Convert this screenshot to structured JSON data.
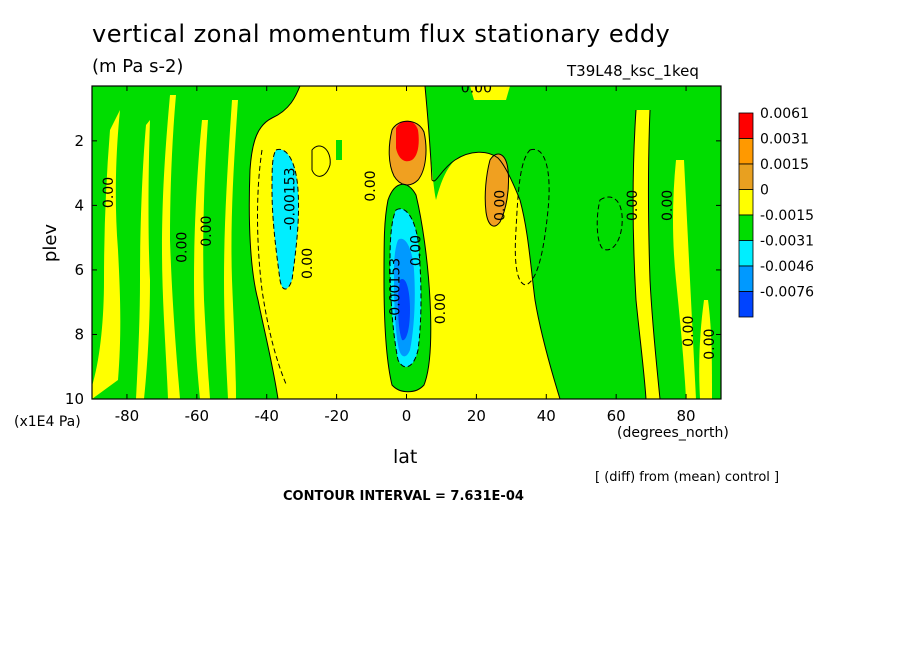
{
  "title": "vertical zonal momentum flux stationary eddy",
  "units": "(m Pa s-2)",
  "run_name": "T39L48_ksc_1keq",
  "note": "[ (diff) from (mean) control ]",
  "contour_interval": "CONTOUR INTERVAL = 7.631E-04",
  "chart_data": {
    "type": "heatmap",
    "title": "vertical zonal momentum flux stationary eddy",
    "xlabel": "lat",
    "xunit": "(degrees_north)",
    "ylabel": "plev",
    "yunit": "(x1E4 Pa)",
    "xlim": [
      -90,
      90
    ],
    "ylim": [
      10,
      0.3
    ],
    "x_ticks": [
      "-80",
      "-60",
      "-40",
      "-20",
      "0",
      "20",
      "40",
      "60",
      "80"
    ],
    "x_tick_values": [
      -80,
      -60,
      -40,
      -20,
      0,
      20,
      40,
      60,
      80
    ],
    "y_ticks": [
      "2",
      "4",
      "6",
      "8",
      "10"
    ],
    "y_tick_values": [
      2,
      4,
      6,
      8,
      10
    ],
    "legend": {
      "labels": [
        "0.0061",
        "0.0031",
        "0.0015",
        "0",
        "-0.0015",
        "-0.0031",
        "-0.0046",
        "-0.0076"
      ],
      "colors": [
        "#ff0000",
        "#ff9900",
        "#e8a020",
        "#ffff00",
        "#00dd00",
        "#00eeff",
        "#0099ff",
        "#0044ff"
      ]
    },
    "fill_colors": {
      "red": "#ff0000",
      "orange": "#f0a020",
      "yellow": "#ffff00",
      "green": "#00dd00",
      "cyan": "#00eeff",
      "sky": "#0099ff",
      "blue": "#0044ff"
    },
    "contour_labels": [
      {
        "text": "0.00",
        "lon": 20,
        "plev": 0.5
      },
      {
        "text": "0.00",
        "lon": -84,
        "plev": 3.6
      },
      {
        "text": "0.00",
        "lon": -56,
        "plev": 4.8
      },
      {
        "text": "0.00",
        "lon": -63,
        "plev": 5.3
      },
      {
        "text": "-0.00153",
        "lon": -32,
        "plev": 3.8
      },
      {
        "text": "0.00",
        "lon": -27,
        "plev": 5.8
      },
      {
        "text": "0.00",
        "lon": -9,
        "plev": 3.4
      },
      {
        "text": "-0.00153",
        "lon": -2,
        "plev": 6.6
      },
      {
        "text": "0.00",
        "lon": 4,
        "plev": 5.4
      },
      {
        "text": "0.00",
        "lon": 11,
        "plev": 7.2
      },
      {
        "text": "0.00",
        "lon": 28,
        "plev": 4.0
      },
      {
        "text": "0.00",
        "lon": 66,
        "plev": 4.0
      },
      {
        "text": "0.00",
        "lon": 76,
        "plev": 4.0
      },
      {
        "text": "0.00",
        "lon": 82,
        "plev": 7.9
      },
      {
        "text": "0.00",
        "lon": 88,
        "plev": 8.3
      }
    ]
  }
}
